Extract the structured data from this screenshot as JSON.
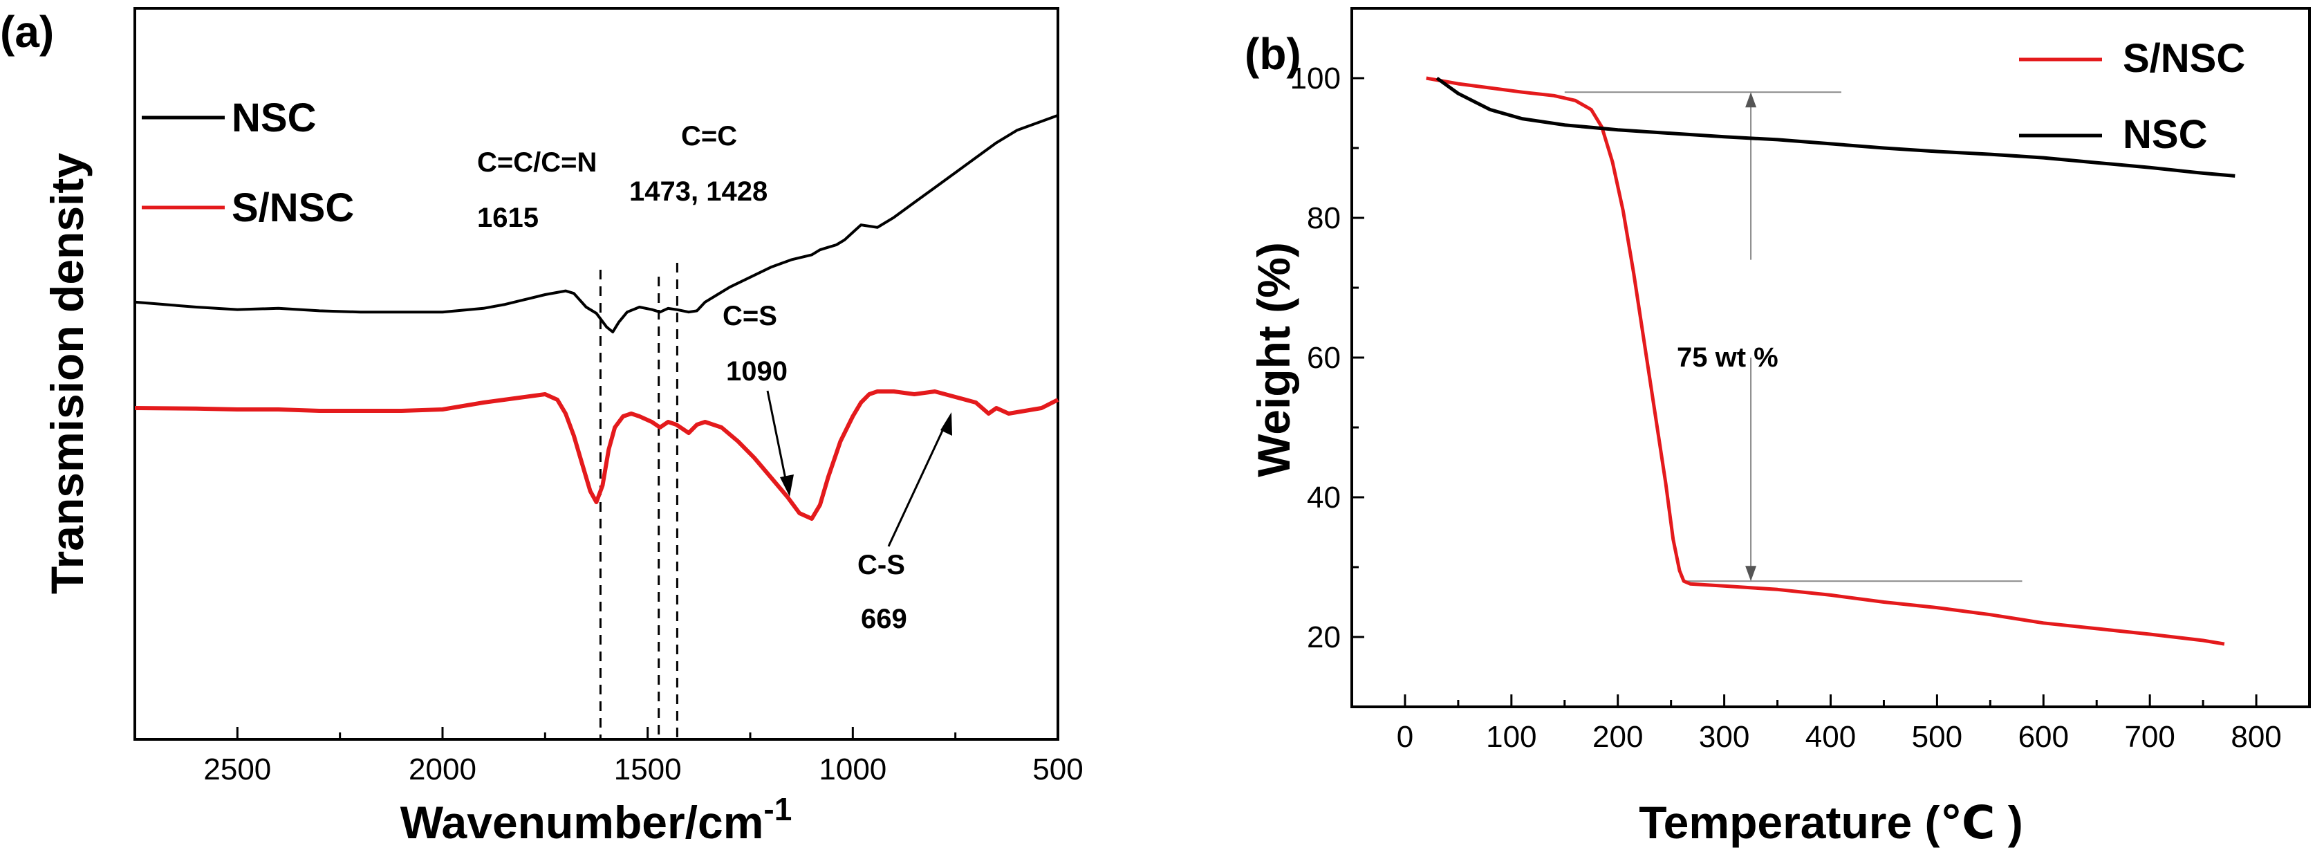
{
  "chart_data": [
    {
      "type": "line",
      "panel_label": "(a)",
      "xlabel": "Wavenumber/cm",
      "xlabel_sup": "-1",
      "ylabel": "Transmision density",
      "xlim": [
        2750,
        500
      ],
      "x_ticks": [
        2500,
        2000,
        1500,
        1000,
        500
      ],
      "y_ticks": [],
      "reversed_x": true,
      "legend_position": "top-left",
      "series": [
        {
          "name": "NSC",
          "color": "#000000",
          "x": [
            2750,
            2600,
            2500,
            2400,
            2300,
            2200,
            2100,
            2000,
            1900,
            1850,
            1800,
            1750,
            1700,
            1680,
            1650,
            1625,
            1600,
            1585,
            1570,
            1550,
            1520,
            1490,
            1470,
            1450,
            1430,
            1400,
            1380,
            1360,
            1330,
            1300,
            1250,
            1200,
            1150,
            1100,
            1080,
            1060,
            1040,
            1020,
            1000,
            980,
            960,
            940,
            900,
            850,
            800,
            750,
            700,
            650,
            600,
            550,
            500
          ],
          "y": [
            0.62,
            0.6,
            0.59,
            0.595,
            0.585,
            0.58,
            0.58,
            0.58,
            0.595,
            0.61,
            0.63,
            0.65,
            0.665,
            0.655,
            0.6,
            0.575,
            0.52,
            0.5,
            0.54,
            0.58,
            0.6,
            0.59,
            0.58,
            0.595,
            0.59,
            0.58,
            0.585,
            0.62,
            0.65,
            0.68,
            0.72,
            0.76,
            0.79,
            0.81,
            0.83,
            0.84,
            0.85,
            0.87,
            0.9,
            0.93,
            0.925,
            0.92,
            0.96,
            1.02,
            1.08,
            1.14,
            1.2,
            1.26,
            1.31,
            1.34,
            1.37
          ]
        },
        {
          "name": "S/NSC",
          "color": "#e41a1c",
          "x": [
            2750,
            2600,
            2500,
            2400,
            2300,
            2200,
            2100,
            2000,
            1900,
            1850,
            1800,
            1750,
            1720,
            1700,
            1680,
            1660,
            1640,
            1625,
            1610,
            1595,
            1580,
            1560,
            1540,
            1520,
            1490,
            1470,
            1450,
            1430,
            1400,
            1380,
            1360,
            1320,
            1280,
            1240,
            1200,
            1160,
            1130,
            1100,
            1080,
            1060,
            1030,
            1000,
            980,
            960,
            940,
            900,
            850,
            800,
            750,
            700,
            669,
            650,
            620,
            580,
            540,
            500
          ],
          "y": [
            0.0,
            -0.002,
            -0.005,
            -0.005,
            -0.01,
            -0.01,
            -0.01,
            -0.005,
            0.02,
            0.03,
            0.04,
            0.05,
            0.03,
            -0.02,
            -0.1,
            -0.2,
            -0.3,
            -0.34,
            -0.28,
            -0.15,
            -0.07,
            -0.03,
            -0.02,
            -0.03,
            -0.05,
            -0.07,
            -0.05,
            -0.06,
            -0.09,
            -0.06,
            -0.05,
            -0.07,
            -0.12,
            -0.18,
            -0.25,
            -0.32,
            -0.38,
            -0.4,
            -0.35,
            -0.25,
            -0.12,
            -0.03,
            0.02,
            0.05,
            0.06,
            0.06,
            0.05,
            0.06,
            0.04,
            0.02,
            -0.02,
            0.0,
            -0.02,
            -0.01,
            0.0,
            0.03
          ]
        }
      ],
      "annotations": [
        {
          "text": "C=C/C=N",
          "text2": "1615",
          "x": 1615,
          "line": "dashed"
        },
        {
          "text": "C=C",
          "text2": "1473, 1428",
          "x": [
            1473,
            1428
          ],
          "line": "dashed"
        },
        {
          "text": "C=S",
          "text2": "1090",
          "x": 1090,
          "arrow": true
        },
        {
          "text": "C-S",
          "text2": "669",
          "x": 669,
          "arrow": true
        }
      ]
    },
    {
      "type": "line",
      "panel_label": "(b)",
      "xlabel": "Temperature (℃ )",
      "ylabel": "Weight (%)",
      "xlim": [
        -50,
        850
      ],
      "ylim": [
        10,
        110
      ],
      "x_ticks": [
        0,
        100,
        200,
        300,
        400,
        500,
        600,
        700,
        800
      ],
      "y_ticks": [
        20,
        40,
        60,
        80,
        100
      ],
      "legend_position": "top-right",
      "series": [
        {
          "name": "S/NSC",
          "color": "#e41a1c",
          "x": [
            20,
            50,
            80,
            110,
            140,
            160,
            175,
            185,
            195,
            205,
            215,
            225,
            235,
            245,
            252,
            258,
            262,
            268,
            300,
            350,
            400,
            450,
            500,
            550,
            600,
            650,
            700,
            750,
            770
          ],
          "y": [
            100,
            99.2,
            98.6,
            98.0,
            97.5,
            96.8,
            95.5,
            93.0,
            88.0,
            81.0,
            72.0,
            62.0,
            52.0,
            42.0,
            34.0,
            29.5,
            28.0,
            27.6,
            27.3,
            26.8,
            26.0,
            25.0,
            24.2,
            23.2,
            22.0,
            21.2,
            20.4,
            19.5,
            19.0
          ]
        },
        {
          "name": "NSC",
          "color": "#000000",
          "x": [
            30,
            50,
            80,
            110,
            150,
            200,
            250,
            300,
            350,
            400,
            450,
            500,
            550,
            600,
            650,
            700,
            750,
            780
          ],
          "y": [
            100,
            97.8,
            95.5,
            94.2,
            93.3,
            92.6,
            92.1,
            91.6,
            91.2,
            90.6,
            90.0,
            89.5,
            89.1,
            88.6,
            87.9,
            87.2,
            86.4,
            86.0
          ]
        }
      ],
      "annotations": [
        {
          "text": "75 wt %",
          "x": 325,
          "y_top": 98,
          "y_bottom": 28
        }
      ]
    }
  ]
}
